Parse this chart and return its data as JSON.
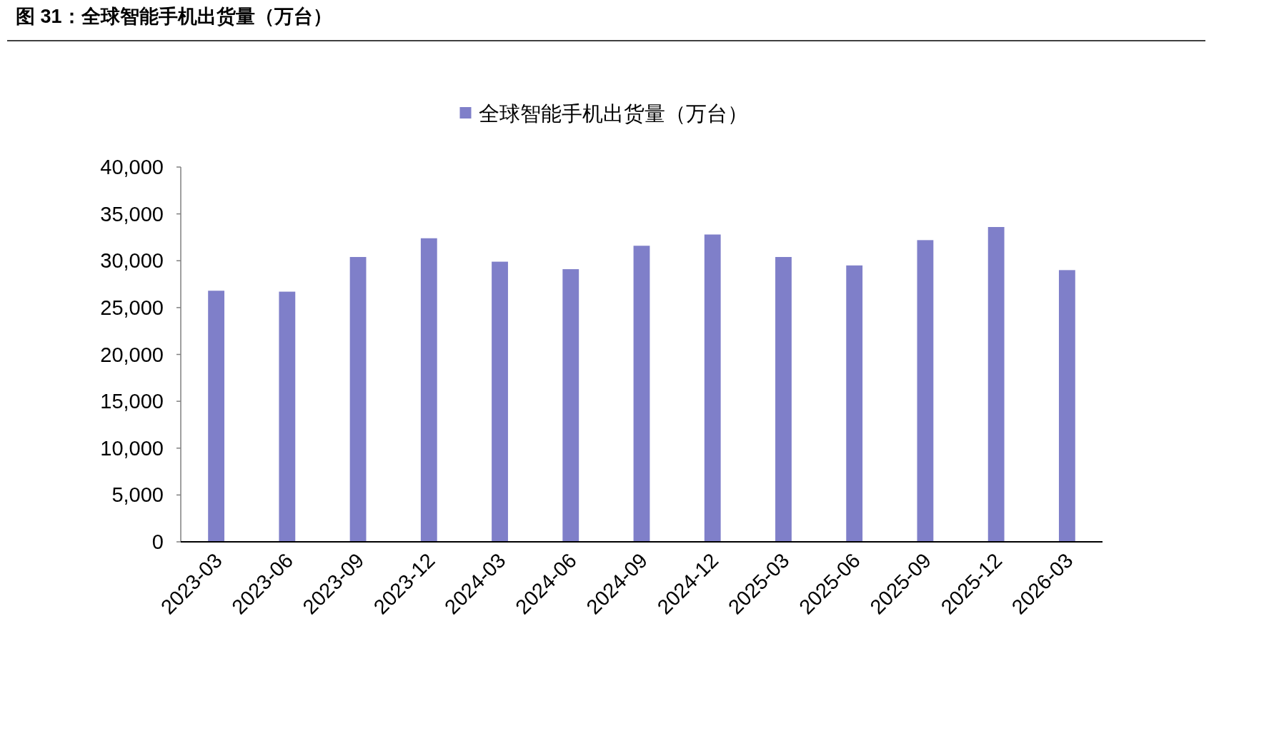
{
  "chart_data": {
    "type": "bar",
    "title": "图 31：全球智能手机出货量（万台）",
    "categories": [
      "2023-03",
      "2023-06",
      "2023-09",
      "2023-12",
      "2024-03",
      "2024-06",
      "2024-09",
      "2024-12",
      "2025-03",
      "2025-06",
      "2025-09",
      "2025-12",
      "2026-03"
    ],
    "series": [
      {
        "name": "全球智能手机出货量（万台）",
        "color": "#7f7fc9",
        "values": [
          26800,
          26700,
          30400,
          32400,
          29900,
          29100,
          31600,
          32800,
          30400,
          29500,
          32200,
          33600,
          29000
        ]
      }
    ],
    "ylim": [
      0,
      40000
    ],
    "yticks": [
      {
        "value": 0,
        "label": "0"
      },
      {
        "value": 5000,
        "label": "5,000"
      },
      {
        "value": 10000,
        "label": "10,000"
      },
      {
        "value": 15000,
        "label": "15,000"
      },
      {
        "value": 20000,
        "label": "20,000"
      },
      {
        "value": 25000,
        "label": "25,000"
      },
      {
        "value": 30000,
        "label": "30,000"
      },
      {
        "value": 35000,
        "label": "35,000"
      },
      {
        "value": 40000,
        "label": "40,000"
      }
    ],
    "legend": "top"
  }
}
